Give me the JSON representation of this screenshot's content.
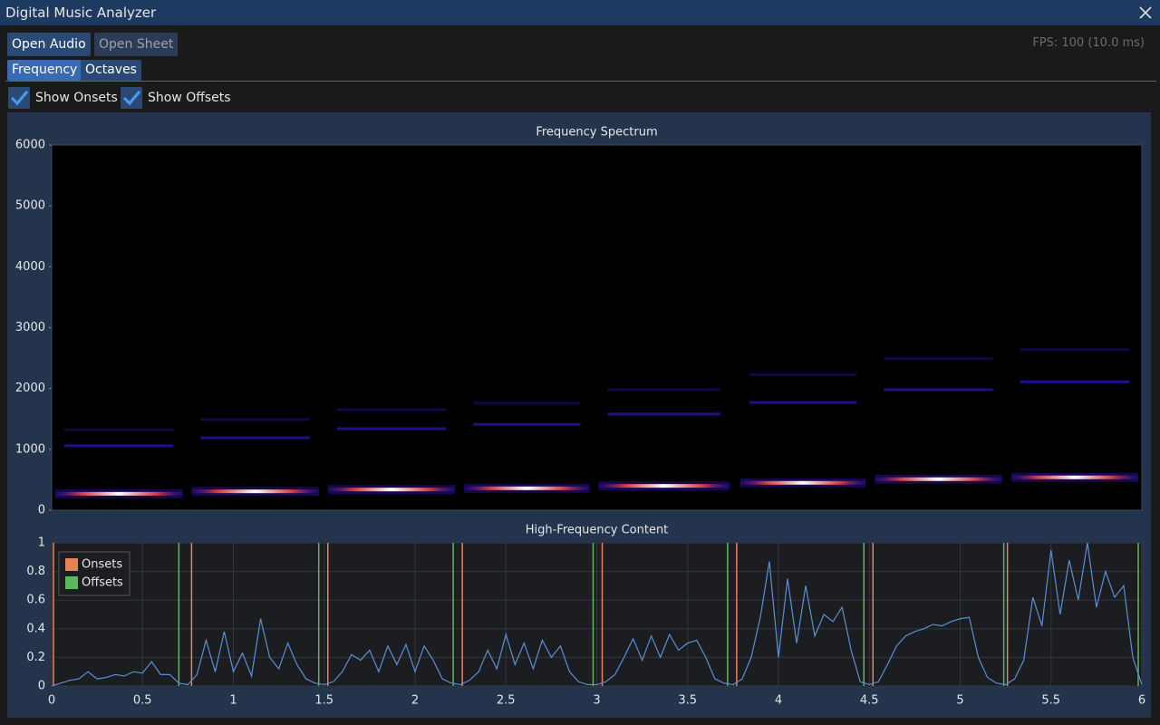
{
  "window": {
    "title": "Digital Music Analyzer"
  },
  "toolbar": {
    "buttons": [
      "Open Audio",
      "Open Sheet"
    ],
    "fps": "FPS: 100 (10.0 ms)"
  },
  "tabs": [
    "Frequency",
    "Octaves"
  ],
  "options": [
    "Show Onsets",
    "Show Offsets"
  ],
  "chart_data": [
    {
      "type": "spectrogram",
      "title": "Frequency Spectrum",
      "xlim": [
        0,
        6
      ],
      "ylim": [
        0,
        6000
      ],
      "yticks": [
        0,
        1000,
        2000,
        3000,
        4000,
        5000,
        6000
      ],
      "colors": [
        "#2a10a0",
        "#e8403a",
        "#ffffff"
      ],
      "notes": [
        {
          "start": 0.02,
          "end": 0.72,
          "freq": 270,
          "harmonics": [
            1060,
            1320
          ]
        },
        {
          "start": 0.77,
          "end": 1.47,
          "freq": 310,
          "harmonics": [
            1190,
            1490
          ]
        },
        {
          "start": 1.52,
          "end": 2.22,
          "freq": 340,
          "harmonics": [
            1340,
            1650
          ]
        },
        {
          "start": 2.27,
          "end": 2.96,
          "freq": 360,
          "harmonics": [
            1410,
            1760
          ]
        },
        {
          "start": 3.01,
          "end": 3.73,
          "freq": 400,
          "harmonics": [
            1580,
            1980
          ]
        },
        {
          "start": 3.79,
          "end": 4.48,
          "freq": 450,
          "harmonics": [
            1770,
            2230
          ]
        },
        {
          "start": 4.53,
          "end": 5.23,
          "freq": 510,
          "harmonics": [
            1980,
            2490
          ]
        },
        {
          "start": 5.28,
          "end": 5.98,
          "freq": 540,
          "harmonics": [
            2110,
            2640
          ]
        }
      ]
    },
    {
      "type": "line",
      "title": "High-Frequency Content",
      "xlim": [
        0,
        6
      ],
      "ylim": [
        0,
        1
      ],
      "xticks": [
        0,
        0.5,
        1,
        1.5,
        2,
        2.5,
        3,
        3.5,
        4,
        4.5,
        5,
        5.5,
        6
      ],
      "yticks": [
        0,
        0.2,
        0.4,
        0.6,
        0.8,
        1
      ],
      "grid": true,
      "color": "#5b8fd6",
      "legend": "upper left",
      "x": [
        0,
        0.05,
        0.1,
        0.15,
        0.2,
        0.25,
        0.3,
        0.35,
        0.4,
        0.45,
        0.5,
        0.55,
        0.6,
        0.65,
        0.7,
        0.75,
        0.8,
        0.85,
        0.9,
        0.95,
        1,
        1.05,
        1.1,
        1.15,
        1.2,
        1.25,
        1.3,
        1.35,
        1.4,
        1.45,
        1.5,
        1.55,
        1.6,
        1.65,
        1.7,
        1.75,
        1.8,
        1.85,
        1.9,
        1.95,
        2,
        2.05,
        2.1,
        2.15,
        2.2,
        2.25,
        2.3,
        2.35,
        2.4,
        2.45,
        2.5,
        2.55,
        2.6,
        2.65,
        2.7,
        2.75,
        2.8,
        2.85,
        2.9,
        2.95,
        3,
        3.05,
        3.1,
        3.15,
        3.2,
        3.25,
        3.3,
        3.35,
        3.4,
        3.45,
        3.5,
        3.55,
        3.6,
        3.65,
        3.7,
        3.75,
        3.8,
        3.85,
        3.9,
        3.95,
        4,
        4.05,
        4.1,
        4.15,
        4.2,
        4.25,
        4.3,
        4.35,
        4.4,
        4.45,
        4.5,
        4.55,
        4.6,
        4.65,
        4.7,
        4.75,
        4.8,
        4.85,
        4.9,
        4.95,
        5,
        5.05,
        5.1,
        5.15,
        5.2,
        5.25,
        5.3,
        5.35,
        5.4,
        5.45,
        5.5,
        5.55,
        5.6,
        5.65,
        5.7,
        5.75,
        5.8,
        5.85,
        5.9,
        5.95,
        6
      ],
      "values": [
        0,
        0.02,
        0.04,
        0.05,
        0.1,
        0.05,
        0.06,
        0.08,
        0.07,
        0.1,
        0.09,
        0.17,
        0.08,
        0.08,
        0.02,
        0.01,
        0.08,
        0.32,
        0.1,
        0.38,
        0.1,
        0.23,
        0.07,
        0.47,
        0.2,
        0.12,
        0.3,
        0.15,
        0.05,
        0.02,
        0.01,
        0.03,
        0.1,
        0.22,
        0.18,
        0.25,
        0.1,
        0.28,
        0.15,
        0.29,
        0.1,
        0.28,
        0.18,
        0.05,
        0.02,
        0.01,
        0.04,
        0.1,
        0.25,
        0.12,
        0.36,
        0.15,
        0.3,
        0.12,
        0.32,
        0.2,
        0.28,
        0.1,
        0.03,
        0.01,
        0.01,
        0.03,
        0.08,
        0.2,
        0.33,
        0.18,
        0.35,
        0.2,
        0.36,
        0.25,
        0.3,
        0.32,
        0.2,
        0.05,
        0.02,
        0.01,
        0.05,
        0.2,
        0.48,
        0.87,
        0.2,
        0.75,
        0.3,
        0.7,
        0.35,
        0.5,
        0.45,
        0.55,
        0.25,
        0.03,
        0.01,
        0.03,
        0.15,
        0.28,
        0.35,
        0.38,
        0.4,
        0.43,
        0.42,
        0.45,
        0.47,
        0.48,
        0.2,
        0.06,
        0.02,
        0.01,
        0.05,
        0.18,
        0.62,
        0.42,
        0.95,
        0.5,
        0.88,
        0.6,
        1,
        0.55,
        0.8,
        0.62,
        0.7,
        0.2,
        0.01
      ],
      "markers": [
        {
          "name": "Onsets",
          "color": "#e8825a",
          "x": [
            0.01,
            0.77,
            1.52,
            2.26,
            3.03,
            3.77,
            4.52,
            5.26
          ]
        },
        {
          "name": "Offsets",
          "color": "#5cb85c",
          "x": [
            0.7,
            1.47,
            2.21,
            2.98,
            3.72,
            4.47,
            5.24,
            5.98
          ]
        }
      ]
    }
  ]
}
